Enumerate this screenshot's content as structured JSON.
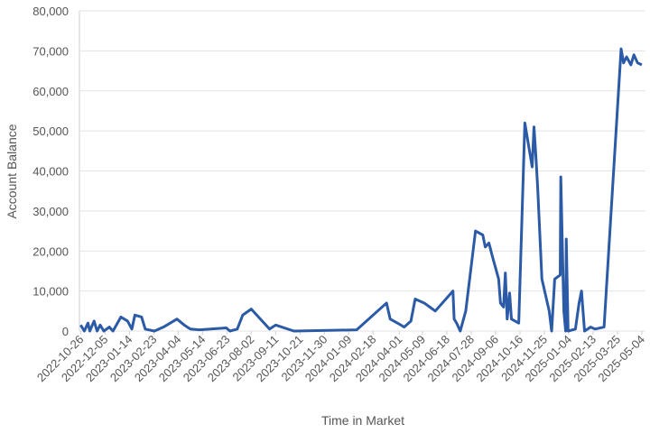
{
  "chart_data": {
    "type": "line",
    "x_label": "Time in Market",
    "y_label": "Account Balance",
    "grid": true,
    "xlim": [
      "2022-10-24",
      "2025-05-10"
    ],
    "xticks": [
      "2022-10-26",
      "2022-12-05",
      "2023-01-14",
      "2023-02-23",
      "2023-04-04",
      "2023-05-14",
      "2023-06-23",
      "2023-08-02",
      "2023-09-11",
      "2023-10-21",
      "2023-11-30",
      "2024-01-09",
      "2024-02-18",
      "2024-04-01",
      "2024-05-09",
      "2024-06-18",
      "2024-07-28",
      "2024-09-06",
      "2024-10-16",
      "2024-11-25",
      "2025-01-04",
      "2025-02-13",
      "2025-03-25",
      "2025-05-04"
    ],
    "ylim": [
      0,
      80000
    ],
    "yticks": [
      0,
      {
        "value": 10000,
        "label": "10,000"
      },
      {
        "value": 20000,
        "label": "20,000"
      },
      {
        "value": 30000,
        "label": "30,000"
      },
      {
        "value": 40000,
        "label": "40,000"
      },
      {
        "value": 50000,
        "label": "50,000"
      },
      {
        "value": 60000,
        "label": "60,000"
      },
      {
        "value": 70000,
        "label": "70,000"
      },
      {
        "value": 80000,
        "label": "80,000"
      }
    ],
    "x": [
      "2022-10-26",
      "2022-11-01",
      "2022-11-07",
      "2022-11-10",
      "2022-11-17",
      "2022-11-22",
      "2022-11-27",
      "2022-12-03",
      "2022-12-12",
      "2022-12-18",
      "2022-12-31",
      "2023-01-11",
      "2023-01-18",
      "2023-01-23",
      "2023-02-03",
      "2023-02-09",
      "2023-02-24",
      "2023-03-11",
      "2023-04-02",
      "2023-04-14",
      "2023-04-24",
      "2023-05-09",
      "2023-06-22",
      "2023-06-28",
      "2023-07-10",
      "2023-07-19",
      "2023-08-02",
      "2023-08-23",
      "2023-09-01",
      "2023-09-11",
      "2023-10-11",
      "2024-01-22",
      "2024-03-11",
      "2024-03-17",
      "2024-03-29",
      "2024-04-09",
      "2024-04-20",
      "2024-04-27",
      "2024-05-12",
      "2024-05-21",
      "2024-05-30",
      "2024-06-28",
      "2024-06-30",
      "2024-07-04",
      "2024-07-10",
      "2024-07-19",
      "2024-08-04",
      "2024-08-16",
      "2024-08-20",
      "2024-08-26",
      "2024-09-01",
      "2024-09-11",
      "2024-09-14",
      "2024-09-19",
      "2024-09-22",
      "2024-09-25",
      "2024-09-29",
      "2024-10-02",
      "2024-10-14",
      "2024-10-24",
      "2024-11-05",
      "2024-11-08",
      "2024-11-11",
      "2024-11-14",
      "2024-11-21",
      "2024-12-03",
      "2024-12-07",
      "2024-12-12",
      "2024-12-21",
      "2024-12-22",
      "2024-12-27",
      "2024-12-30",
      "2024-12-31",
      "2025-01-03",
      "2025-01-15",
      "2025-01-21",
      "2025-01-25",
      "2025-01-30",
      "2025-02-09",
      "2025-02-16",
      "2025-03-03",
      "2025-03-31",
      "2025-04-04",
      "2025-04-09",
      "2025-04-16",
      "2025-04-21",
      "2025-04-27",
      "2025-05-04"
    ],
    "series": [
      {
        "color": "#2b5aa6",
        "values": [
          1500,
          0,
          2000,
          0,
          2500,
          0,
          1500,
          0,
          1000,
          0,
          3500,
          2500,
          500,
          4000,
          3500,
          500,
          0,
          1000,
          3000,
          1500,
          500,
          300,
          800,
          0,
          500,
          4000,
          5500,
          2000,
          500,
          1500,
          0,
          300,
          7000,
          3000,
          2000,
          1000,
          2500,
          8000,
          7000,
          6000,
          5000,
          10000,
          3000,
          2000,
          0,
          5000,
          25000,
          24000,
          21000,
          22000,
          18500,
          13000,
          7000,
          6000,
          14500,
          3000,
          9500,
          3000,
          2000,
          52000,
          41000,
          51000,
          44000,
          36000,
          13000,
          5000,
          0,
          13000,
          14000,
          38500,
          5000,
          0,
          23000,
          0,
          500,
          7000,
          10000,
          0,
          1000,
          500,
          1000,
          70500,
          67000,
          68500,
          66500,
          69000,
          67000,
          66500
        ]
      }
    ]
  }
}
